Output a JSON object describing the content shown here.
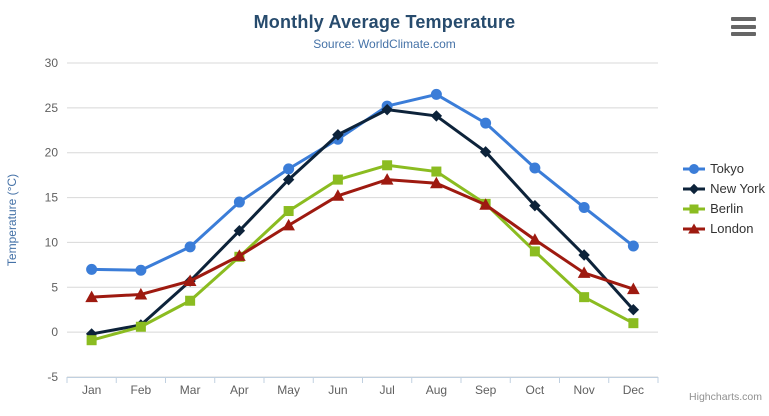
{
  "chart": {
    "title": "Monthly Average Temperature",
    "subtitle": "Source: WorldClimate.com",
    "credits": "Highcharts.com",
    "menu_icon": "hamburger-icon"
  },
  "chart_data": {
    "type": "line",
    "title": "Monthly Average Temperature",
    "subtitle": "Source: WorldClimate.com",
    "categories": [
      "Jan",
      "Feb",
      "Mar",
      "Apr",
      "May",
      "Jun",
      "Jul",
      "Aug",
      "Sep",
      "Oct",
      "Nov",
      "Dec"
    ],
    "xlabel": "",
    "ylabel": "Temperature (°C)",
    "ylim": [
      -5,
      30
    ],
    "tick_interval": 5,
    "grid": true,
    "legend_position": "right",
    "series": [
      {
        "name": "Tokyo",
        "color": "#3b7dd8",
        "marker": "circle",
        "values": [
          7.0,
          6.9,
          9.5,
          14.5,
          18.2,
          21.5,
          25.2,
          26.5,
          23.3,
          18.3,
          13.9,
          9.6
        ]
      },
      {
        "name": "New York",
        "color": "#0d233a",
        "marker": "diamond",
        "values": [
          -0.2,
          0.8,
          5.7,
          11.3,
          17.0,
          22.0,
          24.8,
          24.1,
          20.1,
          14.1,
          8.6,
          2.5
        ]
      },
      {
        "name": "Berlin",
        "color": "#8bbc21",
        "marker": "square",
        "values": [
          -0.9,
          0.6,
          3.5,
          8.4,
          13.5,
          17.0,
          18.6,
          17.9,
          14.3,
          9.0,
          3.9,
          1.0
        ]
      },
      {
        "name": "London",
        "color": "#9e1a10",
        "marker": "triangle",
        "values": [
          3.9,
          4.2,
          5.7,
          8.5,
          11.9,
          15.2,
          17.0,
          16.6,
          14.2,
          10.3,
          6.6,
          4.8
        ]
      }
    ]
  },
  "colors": {
    "title": "#274b6d",
    "subtitle": "#4572a7",
    "axis_label": "#606060",
    "axis_line": "#c0d0e0",
    "gridline": "#d8d8d8",
    "legend_text": "#333333",
    "credits": "#909090",
    "menu_icon": "#666666"
  }
}
